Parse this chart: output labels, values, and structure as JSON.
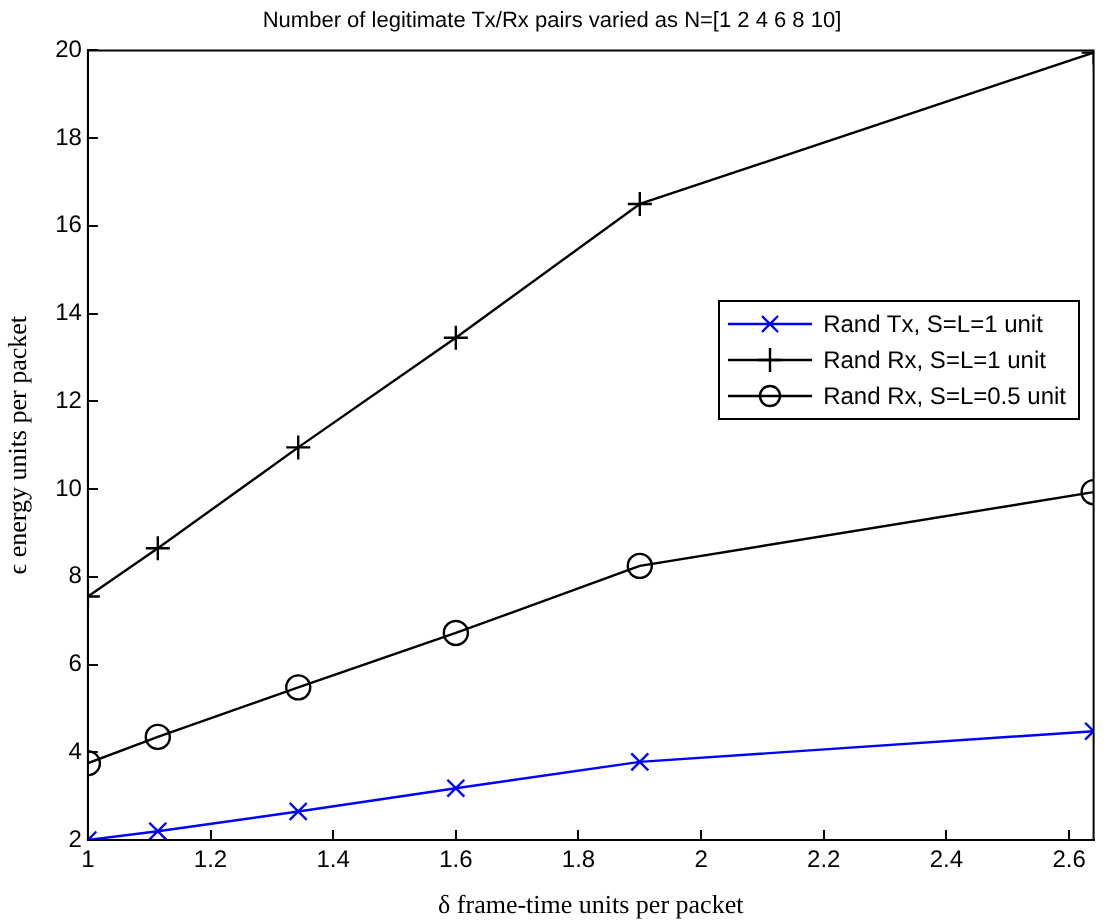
{
  "chart_data": {
    "type": "line",
    "title": "Number of legitimate Tx/Rx pairs varied as N=[1 2 4 6 8 10]",
    "xlabel": "δ frame-time units per packet",
    "ylabel": "ϵ energy units per packet",
    "x": [
      1,
      1.114,
      1.343,
      1.6,
      1.9,
      2.64
    ],
    "series": [
      {
        "name": "Rand Tx, S=L=1 unit",
        "color": "#0000ff",
        "marker": "cross",
        "values": [
          2,
          2.2,
          2.65,
          3.18,
          3.78,
          4.48
        ]
      },
      {
        "name": "Rand Rx, S=L=1 unit",
        "color": "#000000",
        "marker": "plus",
        "values": [
          7.55,
          8.65,
          10.95,
          13.45,
          16.5,
          19.95
        ]
      },
      {
        "name": "Rand Rx, S=L=0.5 unit",
        "color": "#000000",
        "marker": "circle",
        "values": [
          3.75,
          4.35,
          5.48,
          6.72,
          8.25,
          9.93
        ]
      }
    ],
    "xlim": [
      1,
      2.64
    ],
    "xticks": [
      1,
      1.2,
      1.4,
      1.6,
      1.8,
      2,
      2.2,
      2.4,
      2.6
    ],
    "ylim": [
      2,
      20
    ],
    "yticks": [
      2,
      4,
      6,
      8,
      10,
      12,
      14,
      16,
      18,
      20
    ],
    "grid": false,
    "legend": "right",
    "line_style": "solid"
  }
}
